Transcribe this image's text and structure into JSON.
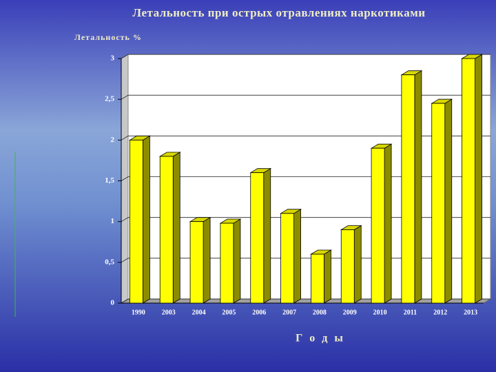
{
  "chart_data": {
    "type": "bar3d",
    "title": "Летальность при острых отравлениях наркотиками",
    "y_label": "Летальность %",
    "x_label": "Г о д ы",
    "categories": [
      "1990",
      "2003",
      "2004",
      "2005",
      "2006",
      "2007",
      "2008",
      "2009",
      "2010",
      "2011",
      "2012",
      "2013"
    ],
    "values": [
      2.0,
      1.8,
      1.0,
      0.98,
      1.6,
      1.1,
      0.6,
      0.9,
      1.9,
      2.8,
      2.45,
      3.0
    ],
    "color": "#ffff00",
    "ylim": [
      0,
      3
    ],
    "yticks": [
      0,
      {
        "value": 0.5,
        "label": "0,5"
      },
      1,
      {
        "value": 1.5,
        "label": "1,5"
      },
      2,
      {
        "value": 2.5,
        "label": "2,5"
      },
      3
    ],
    "grid": true
  }
}
